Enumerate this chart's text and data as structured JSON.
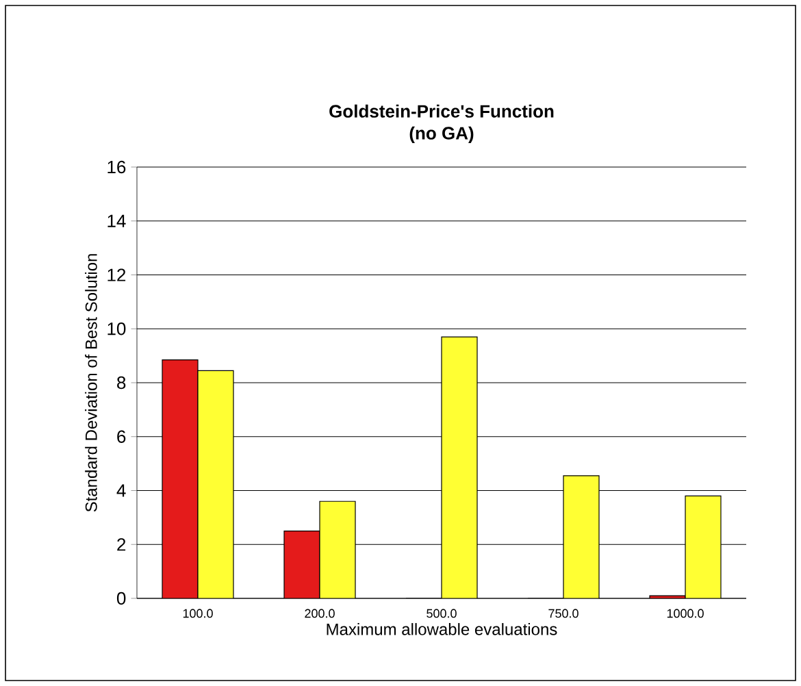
{
  "chart_data": {
    "type": "bar",
    "title": "Goldstein-Price's Function",
    "subtitle": "(no GA)",
    "xlabel": "Maximum allowable evaluations",
    "ylabel": "Standard Deviation of Best Solution",
    "categories": [
      "100.0",
      "200.0",
      "500.0",
      "750.0",
      "1000.0"
    ],
    "series": [
      {
        "color": "#e41b1b",
        "values": [
          8.85,
          2.5,
          0,
          0,
          0.1
        ]
      },
      {
        "color": "#ffff33",
        "values": [
          8.45,
          3.6,
          9.7,
          4.55,
          3.8
        ]
      }
    ],
    "ylim": [
      0,
      16
    ],
    "yticks": [
      0,
      2,
      4,
      6,
      8,
      10,
      12,
      14,
      16
    ],
    "grid": "y"
  }
}
